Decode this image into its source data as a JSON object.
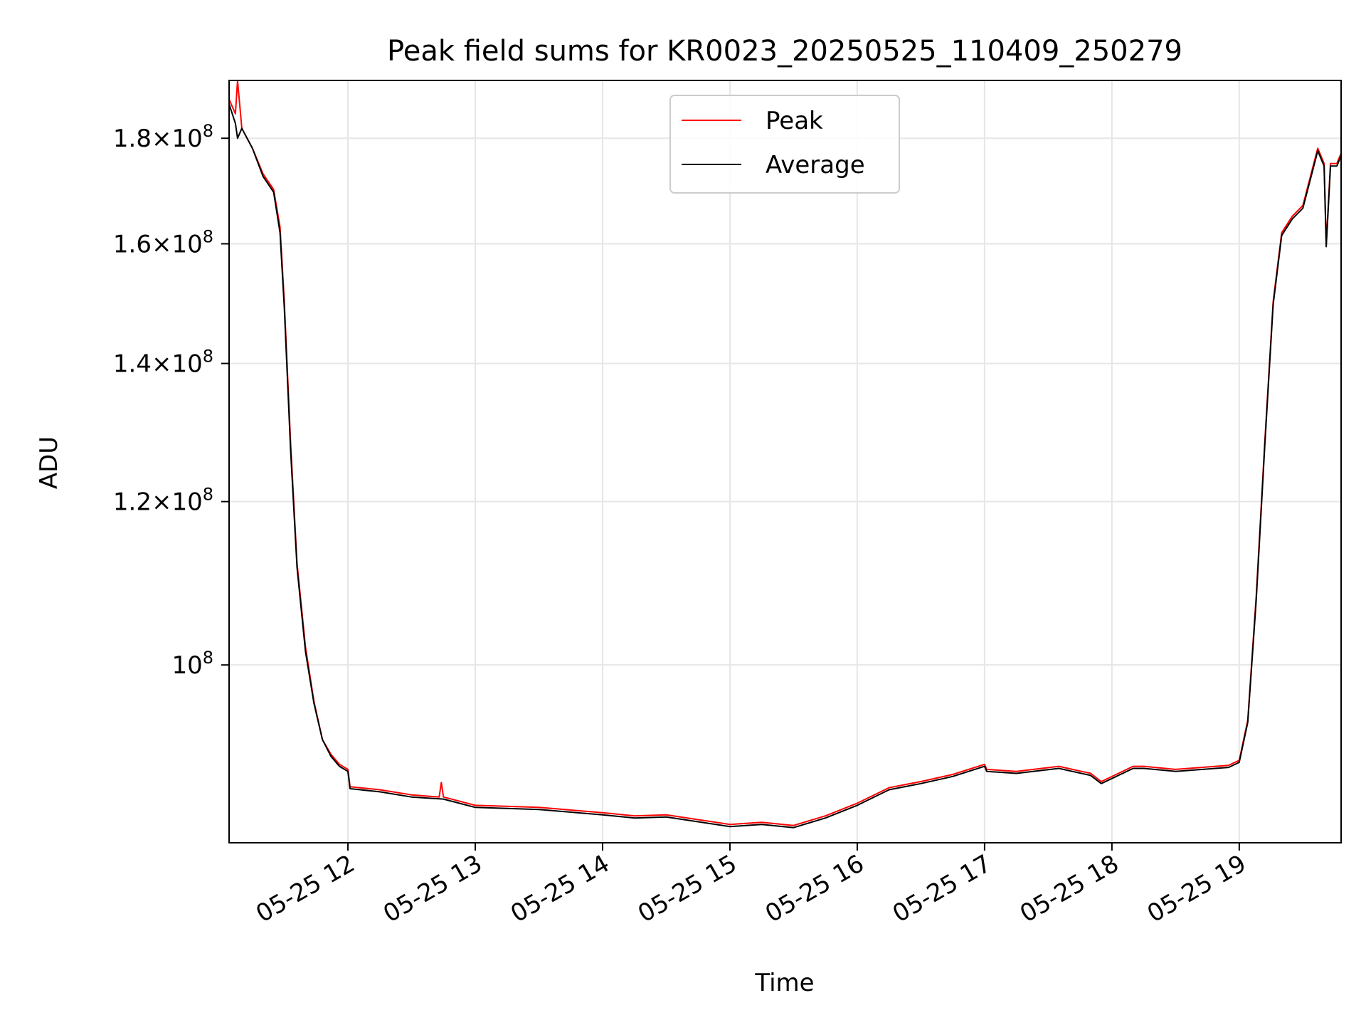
{
  "chart_data": {
    "type": "line",
    "title": "Peak field sums for KR0023_20250525_110409_250279",
    "xlabel": "Time",
    "ylabel": "ADU",
    "y_scale": "log",
    "ylim": [
      82000000,
      192000000
    ],
    "xlim": [
      "2025-05-25 11:04",
      "2025-05-25 19:48"
    ],
    "grid": true,
    "legend_position": "upper center",
    "x_ticks": [
      {
        "value": "2025-05-25 12:00",
        "label": "05-25 12"
      },
      {
        "value": "2025-05-25 13:00",
        "label": "05-25 13"
      },
      {
        "value": "2025-05-25 14:00",
        "label": "05-25 14"
      },
      {
        "value": "2025-05-25 15:00",
        "label": "05-25 15"
      },
      {
        "value": "2025-05-25 16:00",
        "label": "05-25 16"
      },
      {
        "value": "2025-05-25 17:00",
        "label": "05-25 17"
      },
      {
        "value": "2025-05-25 18:00",
        "label": "05-25 18"
      },
      {
        "value": "2025-05-25 19:00",
        "label": "05-25 19"
      }
    ],
    "y_ticks": [
      {
        "value": 100000000,
        "mantissa": "",
        "exponent": "8"
      },
      {
        "value": 120000000,
        "mantissa": "1.2",
        "exponent": "8"
      },
      {
        "value": 140000000,
        "mantissa": "1.4",
        "exponent": "8"
      },
      {
        "value": 160000000,
        "mantissa": "1.6",
        "exponent": "8"
      },
      {
        "value": 180000000,
        "mantissa": "1.8",
        "exponent": "8"
      }
    ],
    "series": [
      {
        "name": "Peak",
        "color": "#ff0000",
        "x": [
          "2025-05-25 11:04",
          "2025-05-25 11:07",
          "2025-05-25 11:08",
          "2025-05-25 11:10",
          "2025-05-25 11:15",
          "2025-05-25 11:20",
          "2025-05-25 11:25",
          "2025-05-25 11:28",
          "2025-05-25 11:30",
          "2025-05-25 11:33",
          "2025-05-25 11:36",
          "2025-05-25 11:40",
          "2025-05-25 11:44",
          "2025-05-25 11:48",
          "2025-05-25 11:52",
          "2025-05-25 11:56",
          "2025-05-25 12:00",
          "2025-05-25 12:01",
          "2025-05-25 12:15",
          "2025-05-25 12:30",
          "2025-05-25 12:43",
          "2025-05-25 12:44",
          "2025-05-25 12:45",
          "2025-05-25 13:00",
          "2025-05-25 13:30",
          "2025-05-25 14:00",
          "2025-05-25 14:15",
          "2025-05-25 14:30",
          "2025-05-25 15:00",
          "2025-05-25 15:15",
          "2025-05-25 15:30",
          "2025-05-25 15:45",
          "2025-05-25 16:00",
          "2025-05-25 16:15",
          "2025-05-25 16:30",
          "2025-05-25 16:45",
          "2025-05-25 17:00",
          "2025-05-25 17:01",
          "2025-05-25 17:15",
          "2025-05-25 17:35",
          "2025-05-25 17:50",
          "2025-05-25 17:55",
          "2025-05-25 18:10",
          "2025-05-25 18:15",
          "2025-05-25 18:30",
          "2025-05-25 18:55",
          "2025-05-25 19:00",
          "2025-05-25 19:04",
          "2025-05-25 19:08",
          "2025-05-25 19:12",
          "2025-05-25 19:16",
          "2025-05-25 19:20",
          "2025-05-25 19:25",
          "2025-05-25 19:30",
          "2025-05-25 19:37",
          "2025-05-25 19:40",
          "2025-05-25 19:41",
          "2025-05-25 19:43",
          "2025-05-25 19:46",
          "2025-05-25 19:48"
        ],
        "values": [
          188000000,
          185000000,
          192000000,
          182000000,
          178000000,
          173000000,
          170000000,
          163000000,
          150000000,
          128000000,
          112000000,
          102000000,
          96000000,
          92000000,
          90500000,
          89500000,
          89000000,
          87300000,
          87000000,
          86500000,
          86300000,
          87700000,
          86300000,
          85500000,
          85300000,
          84800000,
          84500000,
          84600000,
          83700000,
          83900000,
          83600000,
          84500000,
          85700000,
          87200000,
          87800000,
          88500000,
          89500000,
          89000000,
          88800000,
          89300000,
          88600000,
          87800000,
          89300000,
          89300000,
          89000000,
          89400000,
          89900000,
          94000000,
          108000000,
          128000000,
          150000000,
          162000000,
          165000000,
          167000000,
          178000000,
          175000000,
          160000000,
          175000000,
          175000000,
          177000000
        ]
      },
      {
        "name": "Average",
        "color": "#000000",
        "x": [
          "2025-05-25 11:04",
          "2025-05-25 11:07",
          "2025-05-25 11:08",
          "2025-05-25 11:10",
          "2025-05-25 11:15",
          "2025-05-25 11:20",
          "2025-05-25 11:25",
          "2025-05-25 11:28",
          "2025-05-25 11:30",
          "2025-05-25 11:33",
          "2025-05-25 11:36",
          "2025-05-25 11:40",
          "2025-05-25 11:44",
          "2025-05-25 11:48",
          "2025-05-25 11:52",
          "2025-05-25 11:56",
          "2025-05-25 12:00",
          "2025-05-25 12:01",
          "2025-05-25 12:15",
          "2025-05-25 12:30",
          "2025-05-25 12:45",
          "2025-05-25 13:00",
          "2025-05-25 13:30",
          "2025-05-25 14:00",
          "2025-05-25 14:15",
          "2025-05-25 14:30",
          "2025-05-25 15:00",
          "2025-05-25 15:15",
          "2025-05-25 15:30",
          "2025-05-25 15:45",
          "2025-05-25 16:00",
          "2025-05-25 16:15",
          "2025-05-25 16:30",
          "2025-05-25 16:45",
          "2025-05-25 17:00",
          "2025-05-25 17:01",
          "2025-05-25 17:15",
          "2025-05-25 17:35",
          "2025-05-25 17:50",
          "2025-05-25 17:55",
          "2025-05-25 18:10",
          "2025-05-25 18:15",
          "2025-05-25 18:30",
          "2025-05-25 18:55",
          "2025-05-25 19:00",
          "2025-05-25 19:04",
          "2025-05-25 19:08",
          "2025-05-25 19:12",
          "2025-05-25 19:16",
          "2025-05-25 19:20",
          "2025-05-25 19:25",
          "2025-05-25 19:30",
          "2025-05-25 19:37",
          "2025-05-25 19:40",
          "2025-05-25 19:41",
          "2025-05-25 19:43",
          "2025-05-25 19:46",
          "2025-05-25 19:48"
        ],
        "values": [
          187000000,
          183000000,
          180000000,
          182000000,
          178000000,
          172500000,
          169500000,
          162000000,
          149000000,
          127000000,
          111500000,
          101500000,
          95800000,
          92000000,
          90300000,
          89300000,
          88800000,
          87100000,
          86800000,
          86300000,
          86100000,
          85300000,
          85100000,
          84600000,
          84300000,
          84400000,
          83500000,
          83700000,
          83400000,
          84300000,
          85500000,
          87000000,
          87600000,
          88300000,
          89300000,
          88800000,
          88600000,
          89100000,
          88400000,
          87600000,
          89100000,
          89100000,
          88800000,
          89200000,
          89700000,
          93800000,
          107500000,
          127500000,
          149500000,
          161500000,
          164500000,
          166500000,
          177500000,
          174500000,
          159500000,
          174500000,
          174500000,
          176500000
        ]
      }
    ]
  }
}
